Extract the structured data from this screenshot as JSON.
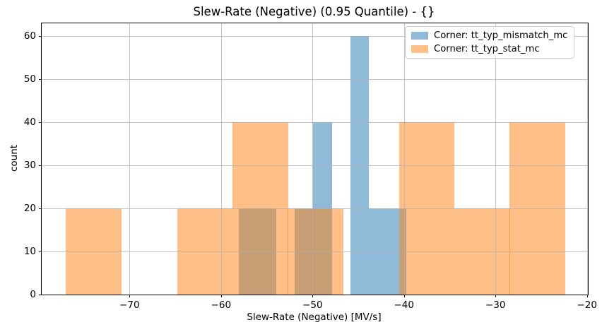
{
  "chart_data": {
    "type": "bar",
    "subtype": "overlaid-histogram",
    "title": "Slew-Rate (Negative) (0.95 Quantile) - {}",
    "xlabel": "Slew-Rate (Negative) [MV/s]",
    "ylabel": "count",
    "xlim": [
      -79.6,
      -19.9
    ],
    "ylim": [
      0,
      63
    ],
    "grid": true,
    "grid_color": "#b0b0b0",
    "legend_position": "upper right",
    "xticks": [
      {
        "value": -70,
        "label": "−70"
      },
      {
        "value": -60,
        "label": "−60"
      },
      {
        "value": -50,
        "label": "−50"
      },
      {
        "value": -40,
        "label": "−40"
      },
      {
        "value": -30,
        "label": "−30"
      },
      {
        "value": -20,
        "label": "−20"
      }
    ],
    "yticks": [
      {
        "value": 0,
        "label": "0"
      },
      {
        "value": 10,
        "label": "10"
      },
      {
        "value": 20,
        "label": "20"
      },
      {
        "value": 30,
        "label": "30"
      },
      {
        "value": 40,
        "label": "40"
      },
      {
        "value": 50,
        "label": "50"
      },
      {
        "value": 60,
        "label": "60"
      }
    ],
    "series": [
      {
        "id": "tt_typ_mismatch_mc",
        "name": "Corner: tt_typ_mismatch_mc",
        "base_color": "#1f77b4",
        "fill_rgba": "rgba(31,119,180,0.5)",
        "bin_edges": [
          -58.05,
          -56.02,
          -53.98,
          -51.95,
          -49.91,
          -47.88,
          -45.84,
          -43.81,
          -41.77,
          -39.74
        ],
        "counts": [
          20,
          20,
          0,
          20,
          40,
          0,
          60,
          20,
          20
        ]
      },
      {
        "id": "tt_typ_stat_mc",
        "name": "Corner: tt_typ_stat_mc",
        "base_color": "#ff7f0e",
        "fill_rgba": "rgba(255,127,14,0.5)",
        "bin_edges": [
          -76.94,
          -70.88,
          -64.81,
          -58.75,
          -52.69,
          -46.63,
          -40.56,
          -34.5,
          -28.44,
          -22.38
        ],
        "counts": [
          20,
          0,
          20,
          40,
          20,
          0,
          40,
          20,
          40
        ]
      }
    ],
    "legend": {
      "entries": [
        {
          "label": "Corner: tt_typ_mismatch_mc",
          "series_id": "tt_typ_mismatch_mc"
        },
        {
          "label": "Corner: tt_typ_stat_mc",
          "series_id": "tt_typ_stat_mc"
        }
      ]
    }
  }
}
